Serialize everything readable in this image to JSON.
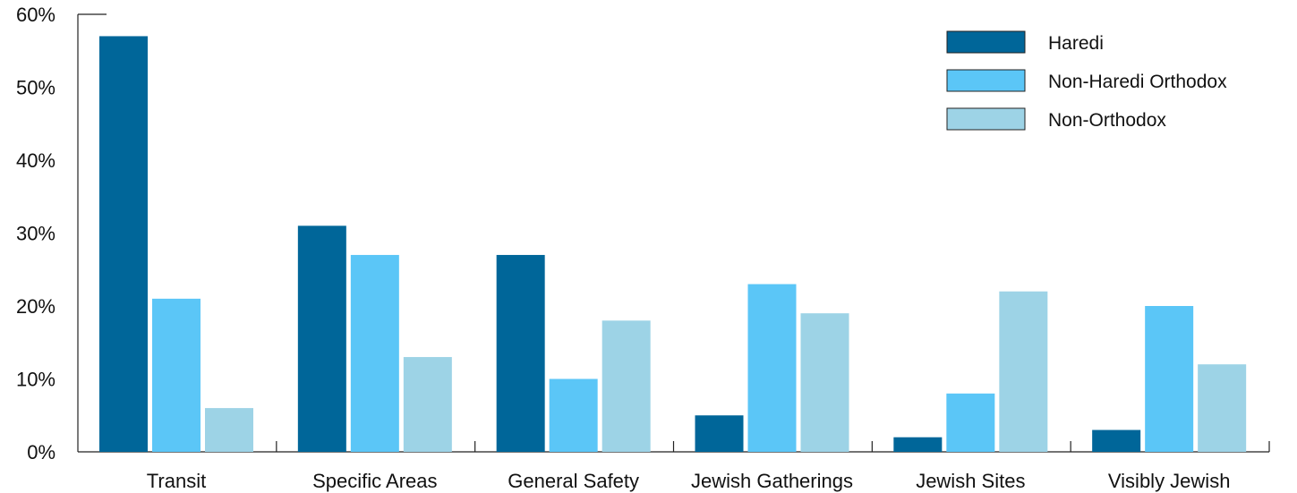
{
  "chart_data": {
    "type": "bar",
    "title": "",
    "xlabel": "",
    "ylabel": "",
    "ylim": [
      0,
      60
    ],
    "y_ticks": [
      0,
      10,
      20,
      30,
      40,
      50,
      60
    ],
    "y_tick_labels": [
      "0%",
      "10%",
      "20%",
      "30%",
      "40%",
      "50%",
      "60%"
    ],
    "grid": false,
    "legend_position": "top-right",
    "categories": [
      "Transit",
      "Specific Areas",
      "General Safety",
      "Jewish Gatherings",
      "Jewish Sites",
      "Visibly Jewish"
    ],
    "series": [
      {
        "name": "Haredi",
        "color": "#006699",
        "values": [
          57,
          31,
          27,
          5,
          2,
          3
        ]
      },
      {
        "name": "Non-Haredi Orthodox",
        "color": "#5bc6f7",
        "values": [
          21,
          27,
          10,
          23,
          8,
          20
        ]
      },
      {
        "name": "Non-Orthodox",
        "color": "#9dd3e6",
        "values": [
          6,
          13,
          18,
          19,
          22,
          12
        ]
      }
    ]
  }
}
